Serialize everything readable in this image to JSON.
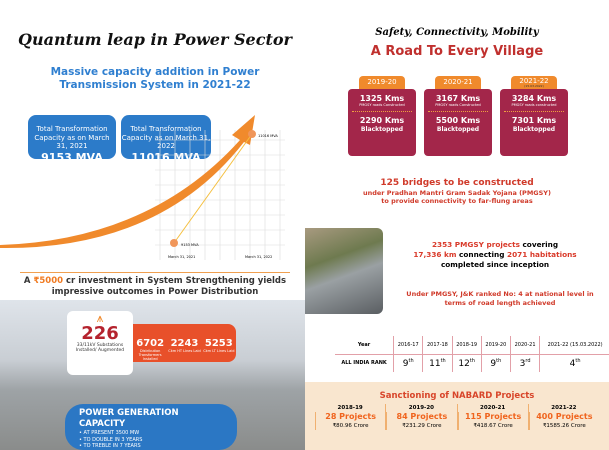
{
  "left": {
    "title": "Quantum leap in Power Sector",
    "subtitle": "Massive capacity addition in Power Transmission System in 2021-22",
    "cards": [
      {
        "label": "Total Transformation Capacity as on March 31, 2021",
        "value": "9153 MVA"
      },
      {
        "label": "Total Transformation Capacity as on March 31, 2022",
        "value": "11016 MVA"
      }
    ],
    "chart": {
      "points": [
        {
          "label": "9153 MVA",
          "date": "March 31, 2021"
        },
        {
          "label": "11016 MVA",
          "date": "March 31, 2022"
        }
      ]
    },
    "investment": {
      "pre": "A ",
      "amount": "₹5000",
      "post": " cr investment in System Strengthening yields impressive outcomes in Power Distribution"
    },
    "substations": {
      "value": "226",
      "label": "33/11kV Substations Installed/ Augmented"
    },
    "stats": [
      {
        "value": "6702",
        "label": "Distribution Transformers Installed"
      },
      {
        "value": "2243",
        "label": "Ckm HT Lines Laid"
      },
      {
        "value": "5253",
        "label": "Ckm LT Lines Laid"
      }
    ],
    "generation": {
      "title": "POWER GENERATION CAPACITY",
      "items": [
        "• AT PRESENT  3500 MW",
        "• TO DOUBLE IN 3 YEARS",
        "• TO TREBLE IN 7 YEARS"
      ]
    }
  },
  "right": {
    "tagline": "Safety, Connectivity, Mobility",
    "title": "A Road To Every Village",
    "years": [
      {
        "year": "2019-20",
        "note": "",
        "built": "1325 Kms",
        "built_label": "PMGSY roads Constructed",
        "black": "2290 Kms",
        "black_label": "Blacktopped"
      },
      {
        "year": "2020-21",
        "note": "",
        "built": "3167 Kms",
        "built_label": "PMGSY roads Constructed",
        "black": "5500 Kms",
        "black_label": "Blacktopped"
      },
      {
        "year": "2021-22",
        "note": "(15.03.2022)",
        "built": "3284 Kms",
        "built_label": "PMGSY roads constructed",
        "black": "7301 Kms",
        "black_label": "Blacktopped"
      }
    ],
    "bridges": {
      "headline": "125 bridges to be constructed",
      "line1": "under Pradhan Mantri Gram Sadak Yojana (PMGSY)",
      "line2": "to provide connectivity to far-flung areas"
    },
    "projects": {
      "a": "2353 PMGSY",
      "b": " projects ",
      "c": "covering",
      "d": "17,336 km",
      "e": " connecting ",
      "f": "2071 habitations",
      "g": "completed since inception"
    },
    "rank_text": "Under PMGSY, J&K ranked No: 4 at national level in terms of road length achieved",
    "rank_table": {
      "row1_label": "Year",
      "row2_label": "ALL INDIA RANK",
      "years": [
        "2016-17",
        "2017-18",
        "2018-19",
        "2019-20",
        "2020-21",
        "2021-22 (15.03.2022)"
      ],
      "ranks": [
        {
          "n": "9",
          "s": "th"
        },
        {
          "n": "11",
          "s": "th"
        },
        {
          "n": "12",
          "s": "th"
        },
        {
          "n": "9",
          "s": "th"
        },
        {
          "n": "3",
          "s": "rd"
        },
        {
          "n": "4",
          "s": "th"
        }
      ]
    },
    "nabard": {
      "title": "Sanctioning of NABARD Projects",
      "items": [
        {
          "year": "2018-19",
          "projects": "28 Projects",
          "amount": "₹80.96 Crore"
        },
        {
          "year": "2019-20",
          "projects": "84 Projects",
          "amount": "₹231.29 Crore"
        },
        {
          "year": "2020-21",
          "projects": "115 Projects",
          "amount": "₹418.67 Crore"
        },
        {
          "year": "2021-22",
          "projects": "400 Projects",
          "amount": "₹1585.26 Crore"
        }
      ]
    }
  },
  "colors": {
    "blue": "#2c7bc9",
    "orange": "#f08a2c",
    "maroon": "#a3264a",
    "red": "#d03a2a"
  }
}
